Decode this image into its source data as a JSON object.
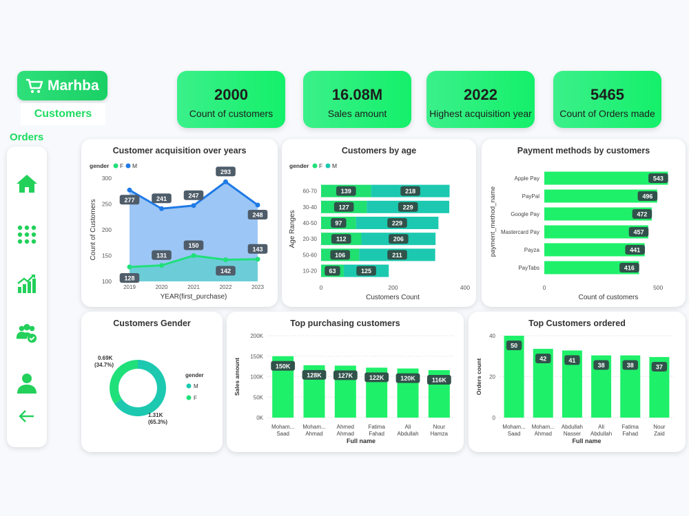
{
  "brand": {
    "name": "Marhba"
  },
  "page_title": "Customers",
  "orders_label": "Orders",
  "kpis": [
    {
      "value": "2000",
      "label": "Count of customers"
    },
    {
      "value": "16.08M",
      "label": "Sales amount"
    },
    {
      "value": "2022",
      "label": "Highest acquisition year"
    },
    {
      "value": "5465",
      "label": "Count of Orders made"
    }
  ],
  "nav_icons": [
    "home-icon",
    "grid-dots-icon",
    "growth-chart-icon",
    "users-check-icon",
    "user-icon",
    "back-arrow-icon"
  ],
  "colors": {
    "accent": "#1ff06a",
    "female": "#20e07a",
    "male": "#1f7ae6",
    "teal": "#1cc9b0"
  },
  "chart_data": [
    {
      "type": "line",
      "title": "Customer acquisition over years",
      "legend_title": "gender",
      "x": [
        2019,
        2020,
        2021,
        2022,
        2023
      ],
      "series": [
        {
          "name": "F",
          "values": [
            128,
            131,
            150,
            142,
            143
          ]
        },
        {
          "name": "M",
          "values": [
            277,
            241,
            247,
            293,
            248
          ]
        }
      ],
      "xlabel": "YEAR(first_purchase)",
      "ylabel": "Count of Customers",
      "yticks": [
        100,
        150,
        200,
        250,
        300
      ],
      "ylim": [
        100,
        300
      ],
      "legend": "top-left"
    },
    {
      "type": "bar",
      "orientation": "horizontal",
      "stacked": true,
      "title": "Customers by age",
      "legend_title": "gender",
      "categories": [
        "60-70",
        "30-40",
        "40-50",
        "20-30",
        "50-60",
        "10-20"
      ],
      "series": [
        {
          "name": "F",
          "values": [
            139,
            127,
            97,
            112,
            106,
            63
          ]
        },
        {
          "name": "M",
          "values": [
            218,
            229,
            229,
            206,
            211,
            125
          ]
        }
      ],
      "xlabel": "Customers Count",
      "ylabel": "Age Ranges",
      "xticks": [
        0,
        200,
        400
      ],
      "xlim": [
        0,
        400
      ],
      "legend": "top-left"
    },
    {
      "type": "bar",
      "orientation": "horizontal",
      "title": "Payment methods by customers",
      "categories": [
        "Apple Pay",
        "PayPal",
        "Google Pay",
        "Mastercard Pay",
        "Payza",
        "PayTabs"
      ],
      "values": [
        543,
        496,
        472,
        457,
        441,
        416
      ],
      "xlabel": "Count of customers",
      "ylabel": "payment_method_name",
      "xticks": [
        0,
        500
      ],
      "xlim": [
        0,
        560
      ]
    },
    {
      "type": "pie",
      "title": "Customers Gender",
      "legend_title": "gender",
      "labels": [
        "M",
        "F"
      ],
      "values": [
        1310,
        690
      ],
      "data_labels": [
        {
          "value": "1.31K",
          "pct": "(65.3%)"
        },
        {
          "value": "0.69K",
          "pct": "(34.7%)"
        }
      ],
      "legend": "right"
    },
    {
      "type": "bar",
      "title": "Top purchasing customers",
      "categories": [
        [
          "Moham...",
          "Saad"
        ],
        [
          "Moham...",
          "Ahmad"
        ],
        [
          "Ahmed",
          "Ahmad"
        ],
        [
          "Fatima",
          "Fahad"
        ],
        [
          "Ali",
          "Abdullah"
        ],
        [
          "Nour",
          "Hamza"
        ]
      ],
      "values": [
        150,
        128,
        127,
        122,
        120,
        116
      ],
      "value_labels": [
        "150K",
        "128K",
        "127K",
        "122K",
        "120K",
        "116K"
      ],
      "xlabel": "Full name",
      "ylabel": "Sales amount",
      "yticks": [
        "0K",
        "50K",
        "100K",
        "150K",
        "200K"
      ],
      "ylim": [
        0,
        200
      ]
    },
    {
      "type": "bar",
      "title": "Top Customers ordered",
      "categories": [
        [
          "Moham...",
          "Saad"
        ],
        [
          "Moham...",
          "Ahmad"
        ],
        [
          "Abdullah",
          "Nasser"
        ],
        [
          "Ali",
          "Abdullah"
        ],
        [
          "Fatima",
          "Fahad"
        ],
        [
          "Nour",
          "Zaid"
        ]
      ],
      "values": [
        50,
        42,
        41,
        38,
        38,
        37
      ],
      "xlabel": "Full name",
      "ylabel": "Orders count",
      "yticks": [
        0,
        20,
        40
      ],
      "ylim": [
        0,
        50
      ]
    }
  ]
}
